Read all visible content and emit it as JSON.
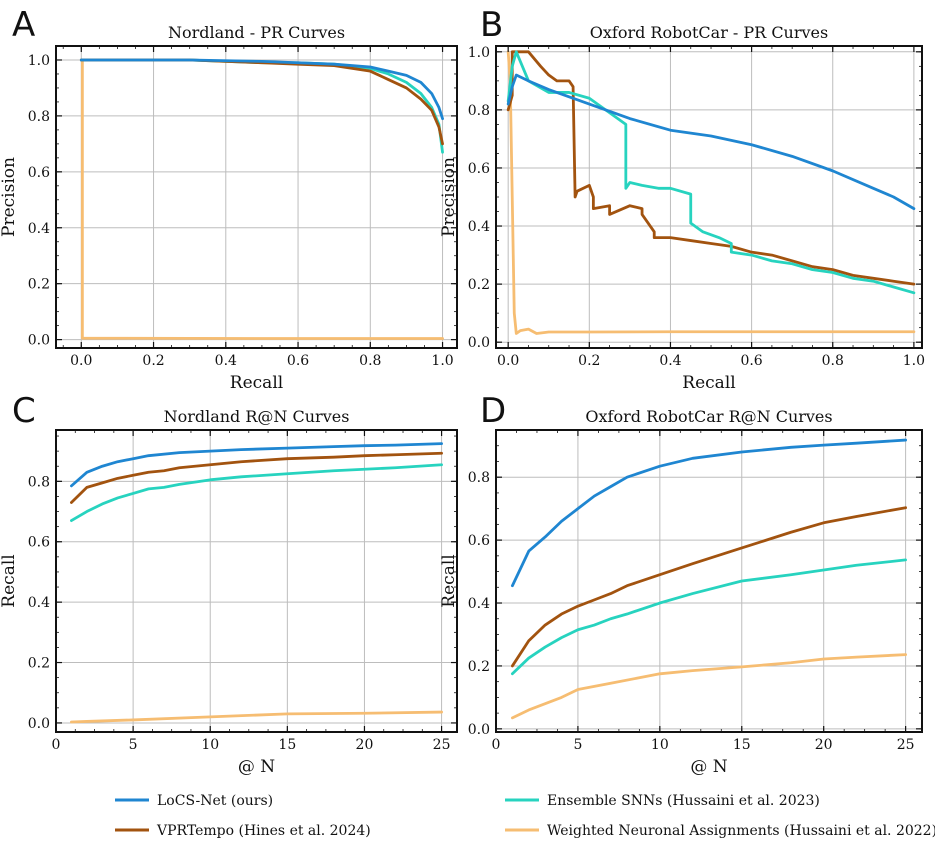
{
  "colors": {
    "locs": "#1f86d1",
    "vpr": "#a2530f",
    "ens": "#27d3bf",
    "wna": "#f6bd72",
    "grid": "#bdbdbd"
  },
  "legend": {
    "items": [
      {
        "key": "locs",
        "label": "LoCS-Net (ours)"
      },
      {
        "key": "ens",
        "label": "Ensemble SNNs (Hussaini et al. 2023)"
      },
      {
        "key": "vpr",
        "label": "VPRTempo (Hines et al. 2024)"
      },
      {
        "key": "wna",
        "label": "Weighted Neuronal Assignments (Hussaini et al. 2022)"
      }
    ]
  },
  "chart_data": [
    {
      "id": "A",
      "panel_letter": "A",
      "type": "line",
      "title": "Nordland - PR Curves",
      "xlabel": "Recall",
      "ylabel": "Precision",
      "xlim": [
        -0.07,
        1.04
      ],
      "ylim": [
        -0.03,
        1.05
      ],
      "xticks": [
        0.0,
        0.2,
        0.4,
        0.6,
        0.8,
        1.0
      ],
      "xtick_labels": [
        "0.0",
        "0.2",
        "0.4",
        "0.6",
        "0.8",
        "1.0"
      ],
      "yticks": [
        0.0,
        0.2,
        0.4,
        0.6,
        0.8,
        1.0
      ],
      "ytick_labels": [
        "0.0",
        "0.2",
        "0.4",
        "0.6",
        "0.8",
        "1.0"
      ],
      "grid": true,
      "series": [
        {
          "key": "wna",
          "name": "Weighted Neuronal Assignments (Hussaini et al. 2022)",
          "x": [
            0.0,
            0.003,
            0.003,
            0.5,
            1.0
          ],
          "y": [
            1.0,
            1.0,
            0.005,
            0.004,
            0.004
          ]
        },
        {
          "key": "ens",
          "name": "Ensemble SNNs (Hussaini et al. 2023)",
          "x": [
            0.0,
            0.3,
            0.5,
            0.6,
            0.7,
            0.8,
            0.85,
            0.9,
            0.94,
            0.97,
            0.99,
            1.0
          ],
          "y": [
            1.0,
            1.0,
            0.99,
            0.99,
            0.985,
            0.97,
            0.95,
            0.92,
            0.88,
            0.83,
            0.77,
            0.67
          ]
        },
        {
          "key": "vpr",
          "name": "VPRTempo (Hines et al. 2024)",
          "x": [
            0.0,
            0.3,
            0.5,
            0.6,
            0.7,
            0.8,
            0.85,
            0.9,
            0.94,
            0.97,
            0.99,
            1.0
          ],
          "y": [
            1.0,
            1.0,
            0.99,
            0.985,
            0.98,
            0.96,
            0.93,
            0.9,
            0.86,
            0.82,
            0.76,
            0.7
          ]
        },
        {
          "key": "locs",
          "name": "LoCS-Net (ours)",
          "x": [
            0.0,
            0.3,
            0.5,
            0.6,
            0.7,
            0.8,
            0.85,
            0.9,
            0.94,
            0.97,
            0.99,
            1.0
          ],
          "y": [
            1.0,
            1.0,
            0.995,
            0.99,
            0.985,
            0.975,
            0.96,
            0.945,
            0.92,
            0.88,
            0.83,
            0.79
          ]
        }
      ]
    },
    {
      "id": "B",
      "panel_letter": "B",
      "type": "line",
      "title": "Oxford RobotCar - PR Curves",
      "xlabel": "Recall",
      "ylabel": "Precision",
      "xlim": [
        -0.03,
        1.02
      ],
      "ylim": [
        -0.02,
        1.02
      ],
      "xticks": [
        0.0,
        0.2,
        0.4,
        0.6,
        0.8,
        1.0
      ],
      "xtick_labels": [
        "0.0",
        "0.2",
        "0.4",
        "0.6",
        "0.8",
        "1.0"
      ],
      "yticks": [
        0.0,
        0.2,
        0.4,
        0.6,
        0.8,
        1.0
      ],
      "ytick_labels": [
        "0.0",
        "0.2",
        "0.4",
        "0.6",
        "0.8",
        "1.0"
      ],
      "grid": true,
      "series": [
        {
          "key": "wna",
          "name": "Weighted Neuronal Assignments (Hussaini et al. 2022)",
          "x": [
            0.0,
            0.005,
            0.01,
            0.015,
            0.02,
            0.03,
            0.05,
            0.07,
            0.1,
            0.2,
            0.4,
            0.6,
            0.8,
            1.0
          ],
          "y": [
            1.0,
            0.9,
            0.5,
            0.1,
            0.03,
            0.04,
            0.045,
            0.03,
            0.035,
            0.035,
            0.036,
            0.036,
            0.036,
            0.036
          ]
        },
        {
          "key": "vpr",
          "name": "VPRTempo (Hines et al. 2024)",
          "x": [
            0.0,
            0.01,
            0.01,
            0.05,
            0.08,
            0.1,
            0.12,
            0.15,
            0.16,
            0.165,
            0.17,
            0.2,
            0.21,
            0.21,
            0.25,
            0.25,
            0.3,
            0.33,
            0.33,
            0.36,
            0.36,
            0.4,
            0.45,
            0.5,
            0.55,
            0.6,
            0.65,
            0.7,
            0.75,
            0.8,
            0.85,
            0.9,
            0.95,
            1.0
          ],
          "y": [
            0.8,
            0.85,
            1.0,
            1.0,
            0.95,
            0.92,
            0.9,
            0.9,
            0.88,
            0.5,
            0.52,
            0.54,
            0.5,
            0.46,
            0.47,
            0.44,
            0.47,
            0.46,
            0.44,
            0.38,
            0.36,
            0.36,
            0.35,
            0.34,
            0.33,
            0.31,
            0.3,
            0.28,
            0.26,
            0.25,
            0.23,
            0.22,
            0.21,
            0.2
          ]
        },
        {
          "key": "ens",
          "name": "Ensemble SNNs (Hussaini et al. 2023)",
          "x": [
            0.0,
            0.01,
            0.02,
            0.05,
            0.1,
            0.15,
            0.2,
            0.25,
            0.29,
            0.29,
            0.3,
            0.33,
            0.37,
            0.4,
            0.45,
            0.45,
            0.48,
            0.52,
            0.55,
            0.55,
            0.6,
            0.65,
            0.7,
            0.75,
            0.8,
            0.85,
            0.9,
            0.95,
            1.0
          ],
          "y": [
            0.83,
            0.95,
            1.0,
            0.9,
            0.86,
            0.86,
            0.84,
            0.79,
            0.75,
            0.53,
            0.55,
            0.54,
            0.53,
            0.53,
            0.51,
            0.41,
            0.38,
            0.36,
            0.34,
            0.31,
            0.3,
            0.28,
            0.27,
            0.25,
            0.24,
            0.22,
            0.21,
            0.19,
            0.17
          ]
        },
        {
          "key": "locs",
          "name": "LoCS-Net (ours)",
          "x": [
            0.0,
            0.01,
            0.02,
            0.05,
            0.1,
            0.2,
            0.3,
            0.4,
            0.5,
            0.6,
            0.7,
            0.8,
            0.9,
            0.95,
            1.0
          ],
          "y": [
            0.82,
            0.88,
            0.92,
            0.9,
            0.87,
            0.82,
            0.77,
            0.73,
            0.71,
            0.68,
            0.64,
            0.59,
            0.53,
            0.5,
            0.46
          ]
        }
      ]
    },
    {
      "id": "C",
      "panel_letter": "C",
      "type": "line",
      "title": "Nordland R@N Curves",
      "xlabel": "@ N",
      "ylabel": "Recall",
      "xlim": [
        0,
        26
      ],
      "ylim": [
        -0.03,
        0.97
      ],
      "xticks": [
        0,
        5,
        10,
        15,
        20,
        25
      ],
      "xtick_labels": [
        "0",
        "5",
        "10",
        "15",
        "20",
        "25"
      ],
      "yticks": [
        0.0,
        0.2,
        0.4,
        0.6,
        0.8
      ],
      "ytick_labels": [
        "0.0",
        "0.2",
        "0.4",
        "0.6",
        "0.8"
      ],
      "grid": true,
      "series": [
        {
          "key": "locs",
          "name": "LoCS-Net (ours)",
          "x": [
            1,
            2,
            3,
            4,
            5,
            6,
            8,
            10,
            12,
            15,
            18,
            20,
            22,
            25
          ],
          "y": [
            0.785,
            0.83,
            0.85,
            0.865,
            0.875,
            0.885,
            0.895,
            0.9,
            0.905,
            0.91,
            0.915,
            0.918,
            0.92,
            0.925
          ]
        },
        {
          "key": "vpr",
          "name": "VPRTempo (Hines et al. 2024)",
          "x": [
            1,
            2,
            3,
            4,
            5,
            6,
            7,
            8,
            10,
            12,
            15,
            18,
            20,
            22,
            25
          ],
          "y": [
            0.73,
            0.78,
            0.795,
            0.81,
            0.82,
            0.83,
            0.835,
            0.845,
            0.855,
            0.865,
            0.875,
            0.88,
            0.885,
            0.888,
            0.893
          ]
        },
        {
          "key": "ens",
          "name": "Ensemble SNNs (Hussaini et al. 2023)",
          "x": [
            1,
            2,
            3,
            4,
            5,
            6,
            7,
            8,
            10,
            12,
            15,
            18,
            20,
            22,
            25
          ],
          "y": [
            0.67,
            0.7,
            0.725,
            0.745,
            0.76,
            0.775,
            0.78,
            0.79,
            0.805,
            0.815,
            0.825,
            0.835,
            0.84,
            0.845,
            0.855
          ]
        },
        {
          "key": "wna",
          "name": "Weighted Neuronal Assignments (Hussaini et al. 2022)",
          "x": [
            1,
            2,
            5,
            10,
            15,
            20,
            25
          ],
          "y": [
            0.003,
            0.005,
            0.01,
            0.02,
            0.03,
            0.032,
            0.036
          ]
        }
      ]
    },
    {
      "id": "D",
      "panel_letter": "D",
      "type": "line",
      "title": "Oxford RobotCar R@N Curves",
      "xlabel": "@ N",
      "ylabel": "Recall",
      "xlim": [
        0,
        26
      ],
      "ylim": [
        -0.01,
        0.95
      ],
      "xticks": [
        0,
        5,
        10,
        15,
        20,
        25
      ],
      "xtick_labels": [
        "0",
        "5",
        "10",
        "15",
        "20",
        "25"
      ],
      "yticks": [
        0.0,
        0.2,
        0.4,
        0.6,
        0.8
      ],
      "ytick_labels": [
        "0.0",
        "0.2",
        "0.4",
        "0.6",
        "0.8"
      ],
      "grid": true,
      "series": [
        {
          "key": "locs",
          "name": "LoCS-Net (ours)",
          "x": [
            1,
            2,
            3,
            4,
            5,
            6,
            7,
            8,
            10,
            12,
            15,
            18,
            20,
            22,
            25
          ],
          "y": [
            0.455,
            0.565,
            0.61,
            0.66,
            0.7,
            0.74,
            0.77,
            0.8,
            0.835,
            0.86,
            0.88,
            0.895,
            0.902,
            0.908,
            0.918
          ]
        },
        {
          "key": "vpr",
          "name": "VPRTempo (Hines et al. 2024)",
          "x": [
            1,
            2,
            3,
            4,
            5,
            6,
            7,
            8,
            10,
            12,
            15,
            18,
            20,
            22,
            25
          ],
          "y": [
            0.2,
            0.28,
            0.33,
            0.365,
            0.39,
            0.41,
            0.43,
            0.455,
            0.49,
            0.525,
            0.575,
            0.625,
            0.655,
            0.675,
            0.703
          ]
        },
        {
          "key": "ens",
          "name": "Ensemble SNNs (Hussaini et al. 2023)",
          "x": [
            1,
            2,
            3,
            4,
            5,
            6,
            7,
            8,
            10,
            12,
            15,
            18,
            20,
            22,
            25
          ],
          "y": [
            0.175,
            0.225,
            0.26,
            0.29,
            0.315,
            0.33,
            0.35,
            0.365,
            0.4,
            0.43,
            0.47,
            0.49,
            0.505,
            0.52,
            0.537
          ]
        },
        {
          "key": "wna",
          "name": "Weighted Neuronal Assignments (Hussaini et al. 2022)",
          "x": [
            1,
            2,
            3,
            4,
            5,
            7,
            10,
            12,
            15,
            18,
            20,
            22,
            25
          ],
          "y": [
            0.035,
            0.06,
            0.08,
            0.1,
            0.125,
            0.145,
            0.175,
            0.185,
            0.197,
            0.21,
            0.222,
            0.228,
            0.236
          ]
        }
      ]
    }
  ]
}
